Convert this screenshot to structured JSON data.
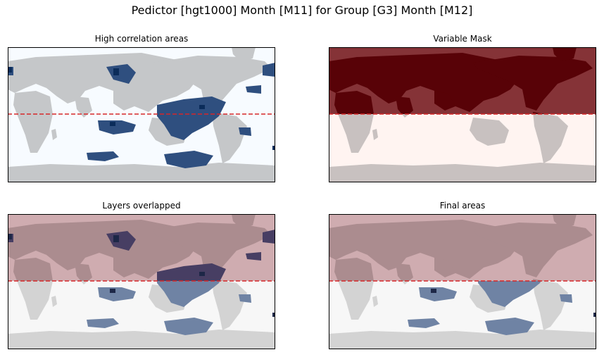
{
  "figure": {
    "suptitle": "Pedictor [hgt1000] Month [M11] for Group [G3] Month [M12]"
  },
  "chart_data": [
    {
      "type": "heatmap",
      "title": "High correlation areas",
      "background_color": "#f7fbff",
      "land_color": "#c5c7c9",
      "region_color": "#2f4f7f",
      "region_dark_color": "#0b2c5a",
      "equator_line": {
        "style": "dashed",
        "color": "#d62728"
      },
      "ticks": "none",
      "grid": false
    },
    {
      "type": "heatmap",
      "title": "Variable Mask",
      "north_color": "#853337",
      "north_land_color": "#580207",
      "south_color": "#fff4f1",
      "south_land_color": "#c8c1c0",
      "equator_line": {
        "style": "dashed",
        "color": "#d62728"
      },
      "ticks": "none",
      "grid": false
    },
    {
      "type": "heatmap",
      "title": "Layers overlapped",
      "north_color": "#cfacb0",
      "north_land_color": "#ab8c8f",
      "south_color": "#f7f7f7",
      "south_land_color": "#d3d3d3",
      "region_color": "#6f83a4",
      "region_north_color": "#473e63",
      "region_dark_color": "#1d2747",
      "equator_line": {
        "style": "dashed",
        "color": "#d62728"
      },
      "ticks": "none",
      "grid": false
    },
    {
      "type": "heatmap",
      "title": "Final areas",
      "north_color": "#cfacb0",
      "north_land_color": "#ab8c8f",
      "south_color": "#f7f7f7",
      "south_land_color": "#d3d3d3",
      "region_color": "#6f83a4",
      "region_north_color": "#6f83a4",
      "region_dark_color": "#1d2747",
      "equator_line": {
        "style": "dashed",
        "color": "#d62728"
      },
      "ticks": "none",
      "grid": false
    }
  ]
}
